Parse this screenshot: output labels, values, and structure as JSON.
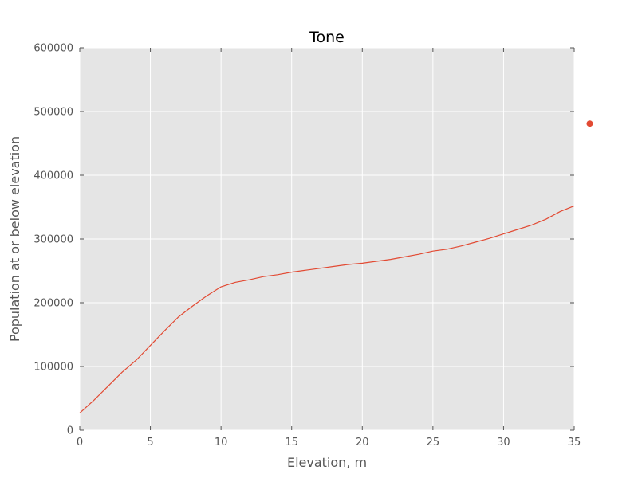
{
  "chart_data": {
    "type": "line",
    "title": "Tone",
    "xlabel": "Elevation, m",
    "ylabel": "Population at or below elevation",
    "xlim": [
      0,
      35
    ],
    "ylim": [
      0,
      600000
    ],
    "x_ticks": [
      0,
      5,
      10,
      15,
      20,
      25,
      30,
      35
    ],
    "y_ticks": [
      0,
      100000,
      200000,
      300000,
      400000,
      500000,
      600000
    ],
    "grid": true,
    "series": [
      {
        "color": "#e24a33",
        "x": [
          0,
          1,
          2,
          3,
          4,
          5,
          6,
          7,
          8,
          9,
          10,
          11,
          12,
          13,
          14,
          15,
          16,
          17,
          18,
          19,
          20,
          21,
          22,
          23,
          24,
          25,
          26,
          27,
          28,
          29,
          30,
          31,
          32,
          33,
          34,
          35
        ],
        "y": [
          27000,
          47000,
          69000,
          91000,
          110000,
          133000,
          156000,
          178000,
          195000,
          211000,
          225000,
          232000,
          236000,
          241000,
          244000,
          248000,
          251000,
          254000,
          257000,
          260000,
          262000,
          265000,
          268000,
          272000,
          276000,
          281000,
          284000,
          289000,
          295000,
          301000,
          308000,
          315000,
          322000,
          331000,
          343000,
          352000
        ]
      }
    ],
    "outlier_point": {
      "x": 36.1,
      "y": 481000,
      "color": "#e24a33"
    }
  },
  "colors": {
    "plot_background": "#e5e5e5",
    "grid": "#ffffff",
    "line": "#e24a33"
  }
}
